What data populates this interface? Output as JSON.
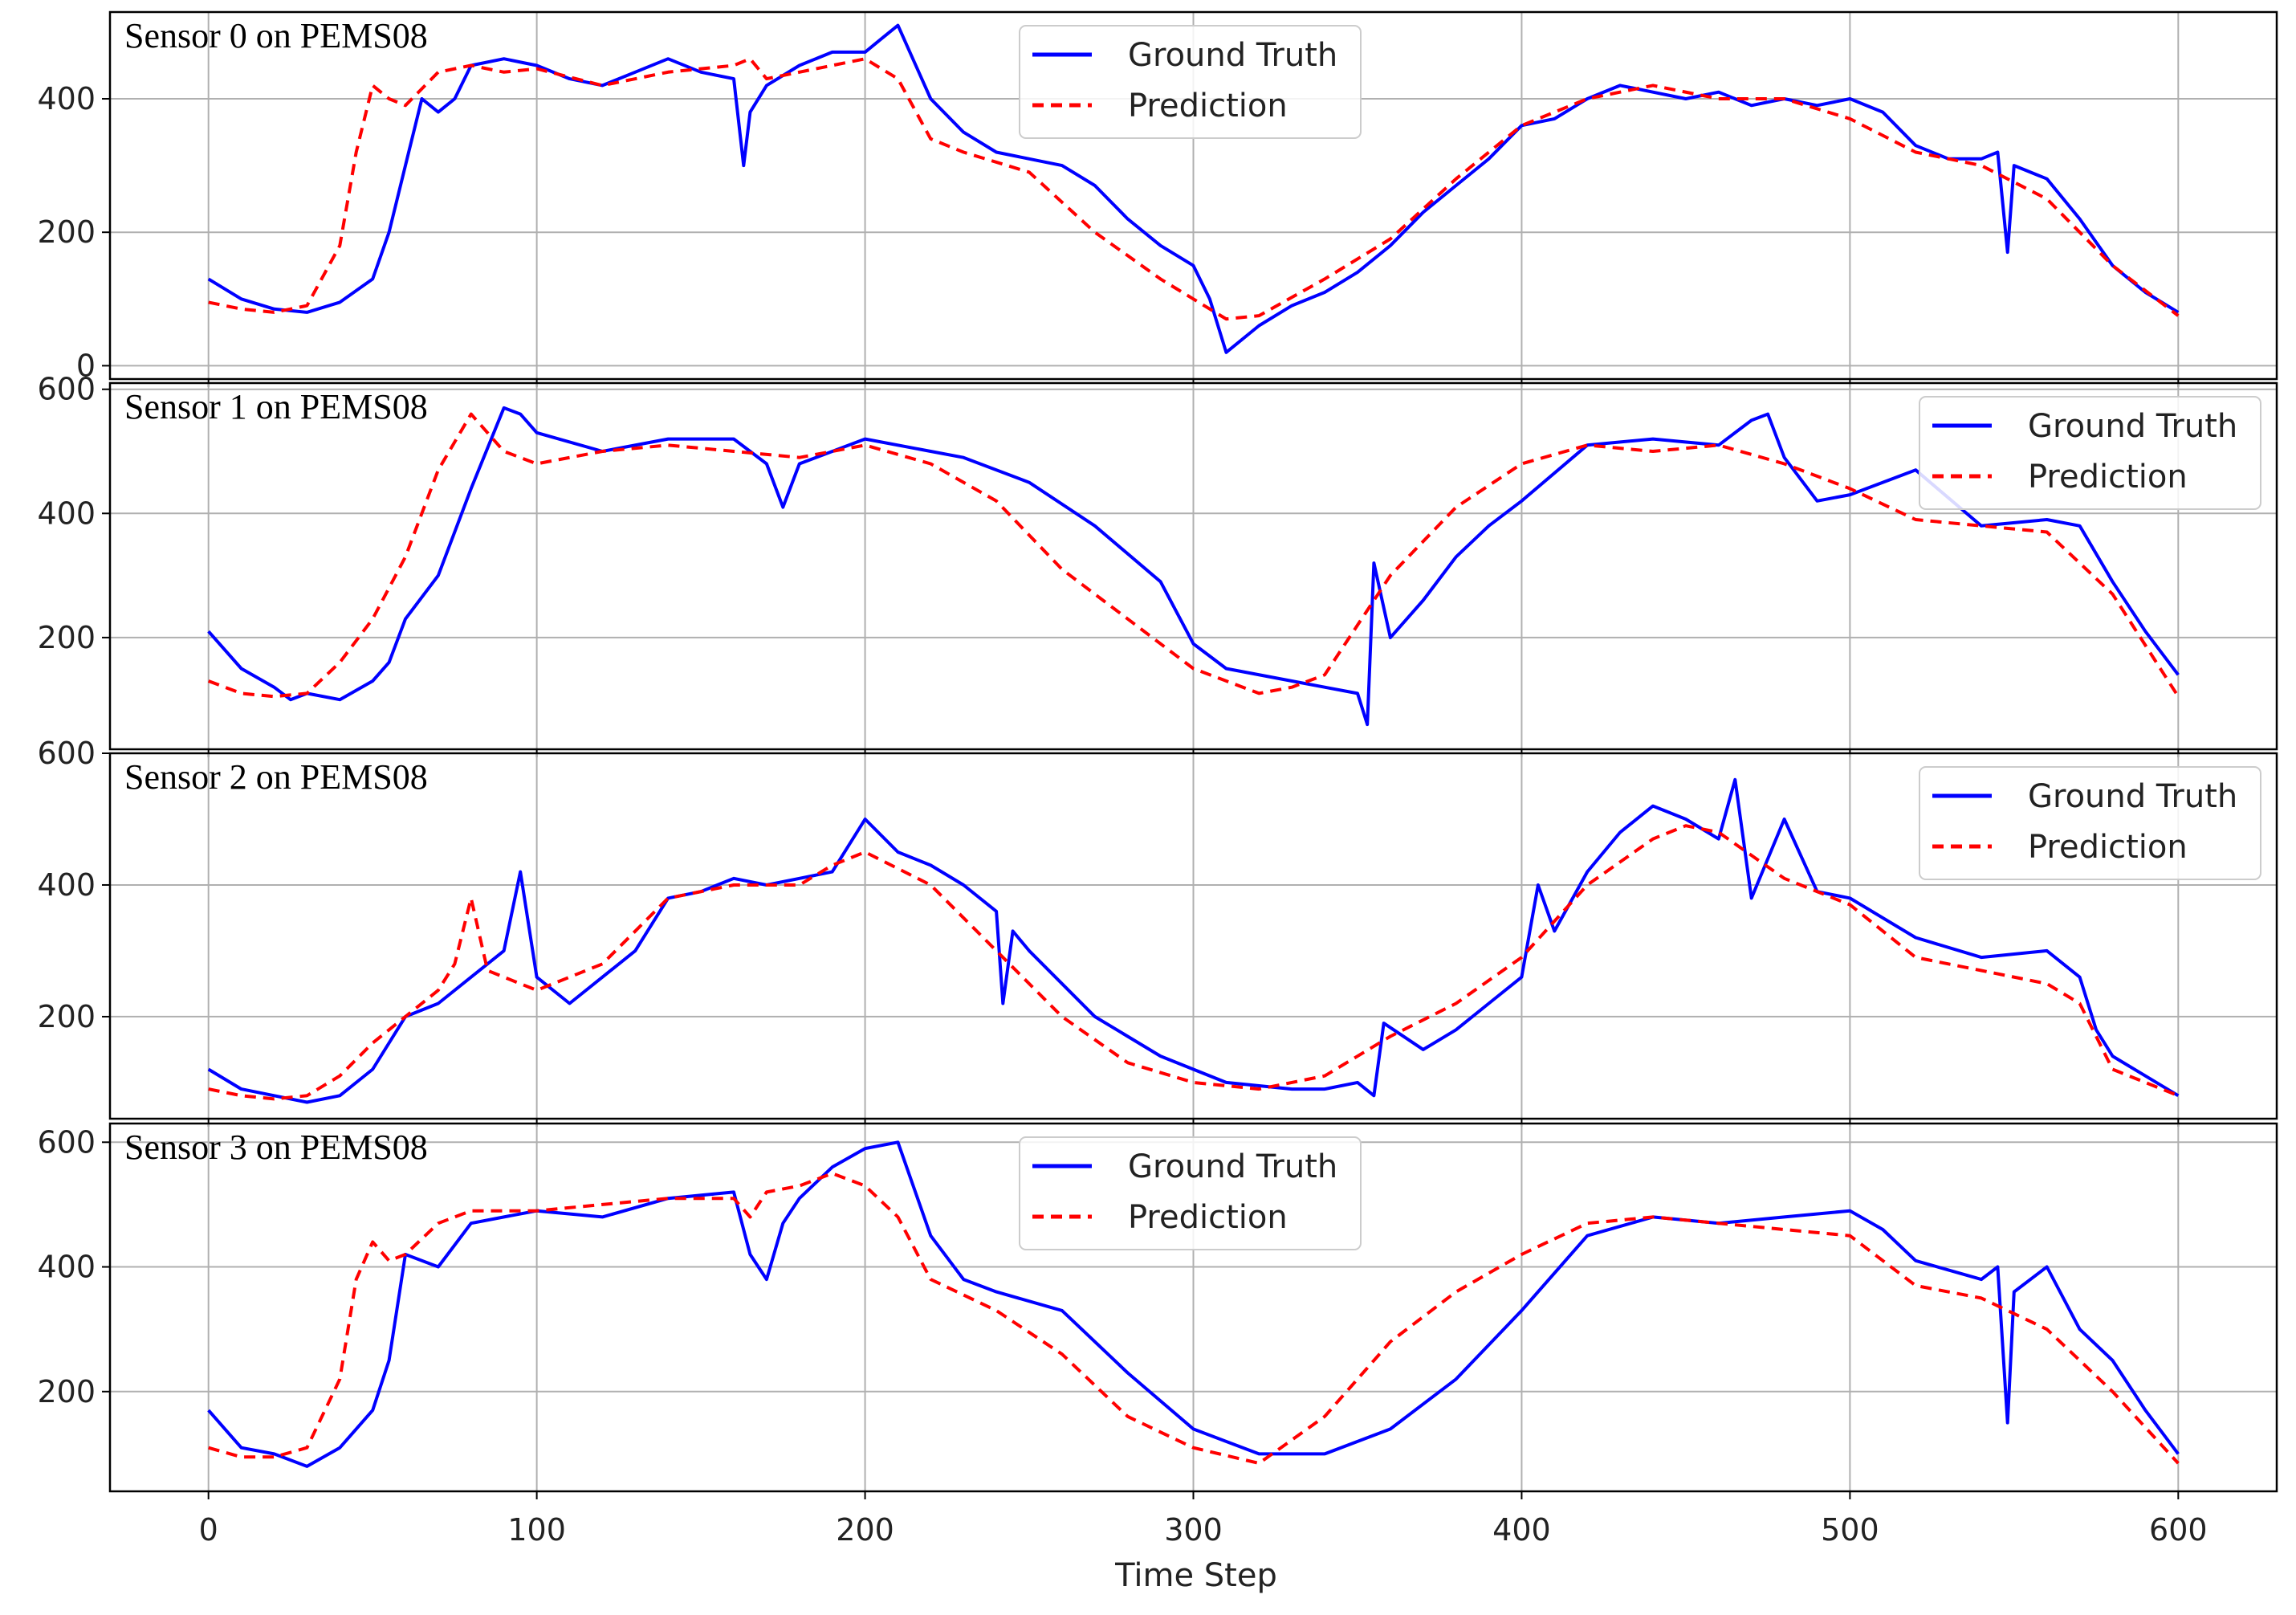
{
  "figure": {
    "xlabel": "Time Step",
    "x_ticks": [
      0,
      100,
      200,
      300,
      400,
      500,
      600
    ],
    "xlim": [
      -30,
      630
    ]
  },
  "legend_labels": {
    "truth": "Ground Truth",
    "prediction": "Prediction"
  },
  "colors": {
    "truth": "#0000ff",
    "prediction": "#ff0000",
    "grid": "#b0b0b0",
    "frame": "#000000"
  },
  "chart_data": [
    {
      "type": "line",
      "title": "Sensor 0 on PEMS08",
      "ylim": [
        -20,
        530
      ],
      "y_ticks": [
        0,
        200,
        400
      ],
      "legend_position": "top-center",
      "series": [
        {
          "name": "Ground Truth",
          "style": "solid",
          "x": [
            0,
            10,
            20,
            30,
            40,
            50,
            55,
            60,
            65,
            70,
            75,
            80,
            90,
            100,
            110,
            120,
            130,
            140,
            150,
            160,
            163,
            165,
            170,
            180,
            190,
            200,
            205,
            210,
            220,
            230,
            240,
            250,
            260,
            270,
            280,
            290,
            300,
            305,
            310,
            320,
            330,
            340,
            350,
            360,
            370,
            380,
            390,
            400,
            410,
            420,
            430,
            440,
            450,
            460,
            470,
            480,
            490,
            500,
            510,
            520,
            530,
            540,
            545,
            548,
            550,
            560,
            570,
            580,
            590,
            600
          ],
          "y": [
            130,
            100,
            85,
            80,
            95,
            130,
            200,
            300,
            400,
            380,
            400,
            450,
            460,
            450,
            430,
            420,
            440,
            460,
            440,
            430,
            300,
            380,
            420,
            450,
            470,
            470,
            490,
            510,
            400,
            350,
            320,
            310,
            300,
            270,
            220,
            180,
            150,
            100,
            20,
            60,
            90,
            110,
            140,
            180,
            230,
            270,
            310,
            360,
            370,
            400,
            420,
            410,
            400,
            410,
            390,
            400,
            390,
            400,
            380,
            330,
            310,
            310,
            320,
            170,
            300,
            280,
            220,
            150,
            110,
            80
          ]
        },
        {
          "name": "Prediction",
          "style": "dashed",
          "x": [
            0,
            10,
            20,
            30,
            40,
            45,
            50,
            55,
            60,
            70,
            80,
            90,
            100,
            120,
            140,
            160,
            165,
            170,
            180,
            190,
            200,
            210,
            220,
            230,
            250,
            270,
            290,
            300,
            310,
            320,
            340,
            360,
            380,
            400,
            420,
            440,
            460,
            480,
            500,
            520,
            540,
            560,
            580,
            600
          ],
          "y": [
            95,
            85,
            80,
            90,
            180,
            320,
            420,
            400,
            390,
            440,
            450,
            440,
            445,
            420,
            440,
            450,
            460,
            430,
            440,
            450,
            460,
            430,
            340,
            320,
            290,
            200,
            130,
            100,
            70,
            75,
            130,
            190,
            280,
            360,
            400,
            420,
            400,
            400,
            370,
            320,
            300,
            250,
            150,
            75
          ]
        }
      ]
    },
    {
      "type": "line",
      "title": "Sensor 1 on PEMS08",
      "ylim": [
        20,
        610
      ],
      "y_ticks": [
        200,
        400,
        600
      ],
      "legend_position": "top-right",
      "series": [
        {
          "name": "Ground Truth",
          "style": "solid",
          "x": [
            0,
            10,
            20,
            25,
            30,
            40,
            50,
            55,
            60,
            70,
            80,
            90,
            95,
            100,
            120,
            140,
            160,
            170,
            175,
            180,
            200,
            220,
            230,
            250,
            270,
            290,
            300,
            310,
            330,
            340,
            350,
            353,
            355,
            360,
            370,
            380,
            390,
            400,
            420,
            440,
            460,
            470,
            475,
            480,
            490,
            500,
            520,
            540,
            560,
            570,
            580,
            590,
            600
          ],
          "y": [
            210,
            150,
            120,
            100,
            110,
            100,
            130,
            160,
            230,
            300,
            440,
            570,
            560,
            530,
            500,
            520,
            520,
            480,
            410,
            480,
            520,
            500,
            490,
            450,
            380,
            290,
            190,
            150,
            130,
            120,
            110,
            60,
            320,
            200,
            260,
            330,
            380,
            420,
            510,
            520,
            510,
            550,
            560,
            490,
            420,
            430,
            470,
            380,
            390,
            380,
            290,
            210,
            140
          ]
        },
        {
          "name": "Prediction",
          "style": "dashed",
          "x": [
            0,
            10,
            20,
            30,
            40,
            50,
            60,
            70,
            80,
            90,
            100,
            120,
            140,
            160,
            180,
            200,
            220,
            240,
            260,
            280,
            300,
            320,
            330,
            340,
            350,
            360,
            380,
            400,
            420,
            440,
            460,
            480,
            500,
            520,
            540,
            560,
            580,
            600
          ],
          "y": [
            130,
            110,
            105,
            110,
            160,
            230,
            330,
            470,
            560,
            500,
            480,
            500,
            510,
            500,
            490,
            510,
            480,
            420,
            310,
            230,
            150,
            110,
            120,
            140,
            220,
            300,
            410,
            480,
            510,
            500,
            510,
            480,
            440,
            390,
            380,
            370,
            270,
            105
          ]
        }
      ]
    },
    {
      "type": "line",
      "title": "Sensor 2 on PEMS08",
      "ylim": [
        45,
        600
      ],
      "y_ticks": [
        200,
        400,
        600
      ],
      "legend_position": "top-right",
      "series": [
        {
          "name": "Ground Truth",
          "style": "solid",
          "x": [
            0,
            10,
            20,
            30,
            40,
            50,
            60,
            70,
            80,
            90,
            95,
            100,
            110,
            120,
            130,
            140,
            150,
            160,
            170,
            180,
            190,
            200,
            210,
            220,
            230,
            240,
            242,
            245,
            250,
            260,
            270,
            290,
            310,
            330,
            340,
            350,
            355,
            358,
            370,
            380,
            390,
            400,
            405,
            410,
            420,
            430,
            440,
            450,
            460,
            465,
            470,
            480,
            490,
            500,
            520,
            540,
            560,
            570,
            575,
            580,
            590,
            600
          ],
          "y": [
            120,
            90,
            80,
            70,
            80,
            120,
            200,
            220,
            260,
            300,
            420,
            260,
            220,
            260,
            300,
            380,
            390,
            410,
            400,
            410,
            420,
            500,
            450,
            430,
            400,
            360,
            220,
            330,
            300,
            250,
            200,
            140,
            100,
            90,
            90,
            100,
            80,
            190,
            150,
            180,
            220,
            260,
            400,
            330,
            420,
            480,
            520,
            500,
            470,
            560,
            380,
            500,
            390,
            380,
            320,
            290,
            300,
            260,
            180,
            140,
            110,
            80
          ]
        },
        {
          "name": "Prediction",
          "style": "dashed",
          "x": [
            0,
            10,
            20,
            30,
            40,
            50,
            60,
            70,
            75,
            80,
            85,
            90,
            100,
            110,
            120,
            130,
            140,
            160,
            180,
            190,
            200,
            220,
            240,
            260,
            280,
            300,
            320,
            340,
            360,
            380,
            400,
            420,
            440,
            450,
            460,
            480,
            500,
            520,
            540,
            560,
            570,
            580,
            600
          ],
          "y": [
            90,
            80,
            75,
            80,
            110,
            160,
            200,
            240,
            280,
            380,
            270,
            260,
            240,
            260,
            280,
            330,
            380,
            400,
            400,
            430,
            450,
            400,
            300,
            200,
            130,
            100,
            90,
            110,
            170,
            220,
            290,
            400,
            470,
            490,
            480,
            410,
            370,
            290,
            270,
            250,
            220,
            120,
            80
          ]
        }
      ]
    },
    {
      "type": "line",
      "title": "Sensor 3 on PEMS08",
      "ylim": [
        40,
        630
      ],
      "y_ticks": [
        200,
        400,
        600
      ],
      "legend_position": "top-center",
      "series": [
        {
          "name": "Ground Truth",
          "style": "solid",
          "x": [
            0,
            10,
            20,
            30,
            40,
            50,
            55,
            60,
            70,
            80,
            90,
            100,
            120,
            140,
            160,
            165,
            170,
            175,
            180,
            190,
            200,
            210,
            220,
            230,
            240,
            260,
            280,
            300,
            320,
            340,
            360,
            380,
            400,
            420,
            440,
            460,
            480,
            500,
            510,
            520,
            540,
            545,
            548,
            550,
            560,
            570,
            580,
            590,
            600
          ],
          "y": [
            170,
            110,
            100,
            80,
            110,
            170,
            250,
            420,
            400,
            470,
            480,
            490,
            480,
            510,
            520,
            420,
            380,
            470,
            510,
            560,
            590,
            600,
            450,
            380,
            360,
            330,
            230,
            140,
            100,
            100,
            140,
            220,
            330,
            450,
            480,
            470,
            480,
            490,
            460,
            410,
            380,
            400,
            150,
            360,
            400,
            300,
            250,
            170,
            100
          ]
        },
        {
          "name": "Prediction",
          "style": "dashed",
          "x": [
            0,
            10,
            20,
            30,
            40,
            45,
            50,
            55,
            60,
            70,
            80,
            100,
            120,
            140,
            160,
            165,
            170,
            180,
            190,
            200,
            210,
            220,
            240,
            260,
            280,
            300,
            320,
            340,
            360,
            380,
            400,
            420,
            440,
            460,
            480,
            500,
            520,
            540,
            560,
            580,
            600
          ],
          "y": [
            110,
            95,
            95,
            110,
            220,
            380,
            440,
            410,
            420,
            470,
            490,
            490,
            500,
            510,
            510,
            480,
            520,
            530,
            550,
            530,
            480,
            380,
            330,
            260,
            160,
            110,
            85,
            160,
            280,
            360,
            420,
            470,
            480,
            470,
            460,
            450,
            370,
            350,
            300,
            200,
            85
          ]
        }
      ]
    }
  ]
}
